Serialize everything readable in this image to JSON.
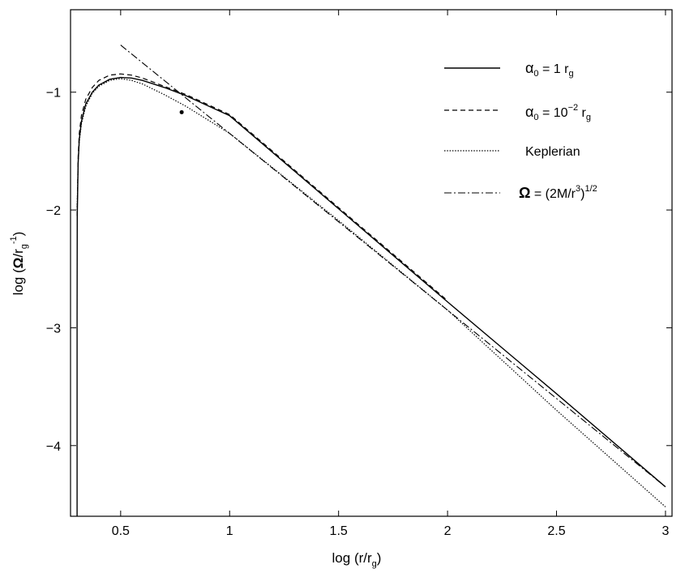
{
  "chart_data": {
    "type": "line",
    "xlabel": "log (r/r",
    "xlabel_sub": "g",
    "xlabel_close": ")",
    "ylabel_parts": {
      "pre": "log (",
      "omega": "Ω",
      "mid": "/r",
      "sub": "g",
      "sup": "-1",
      "post": ")"
    },
    "xlim": [
      0.27,
      3.03
    ],
    "ylim": [
      -4.6,
      -0.3
    ],
    "x_ticks": [
      0.5,
      1,
      1.5,
      2,
      2.5,
      3
    ],
    "x_tick_labels": [
      "0.5",
      "1",
      "1.5",
      "2",
      "2.5",
      "3"
    ],
    "y_ticks": [
      -1,
      -2,
      -3,
      -4
    ],
    "y_tick_labels": [
      "−1",
      "−2",
      "−3",
      "−4"
    ],
    "grid": false,
    "legend_position": "top-right",
    "legend": [
      {
        "style": "solid",
        "symbol": "α",
        "sub": "0",
        "rest": " = 1 r",
        "rest_sub": "g"
      },
      {
        "style": "dashed",
        "symbol": "α",
        "sub": "0",
        "rest": " = 10",
        "sup": "−2",
        "rest2": " r",
        "rest_sub": "g"
      },
      {
        "style": "dotted",
        "text": "Keplerian"
      },
      {
        "style": "dashdot",
        "omega": "Ω",
        "rest": " = (2M/r",
        "sup": "3",
        "rest2": ")",
        "sup2": "1/2"
      }
    ],
    "series": [
      {
        "style": "solid",
        "x": [
          0.3,
          0.3,
          0.301,
          0.305,
          0.31,
          0.32,
          0.34,
          0.37,
          0.4,
          0.45,
          0.5,
          0.55,
          0.6,
          0.7,
          0.8,
          1.0,
          1.5,
          2.0,
          2.5,
          3.0
        ],
        "y": [
          -4.6,
          -2.9,
          -2.05,
          -1.6,
          -1.4,
          -1.25,
          -1.1,
          -1.0,
          -0.94,
          -0.89,
          -0.875,
          -0.88,
          -0.9,
          -0.96,
          -1.03,
          -1.2,
          -1.99,
          -2.78,
          -3.56,
          -4.35
        ]
      },
      {
        "style": "dashed",
        "x": [
          0.3,
          0.305,
          0.31,
          0.32,
          0.34,
          0.37,
          0.4,
          0.45,
          0.5,
          0.55,
          0.6,
          0.7,
          0.8,
          1.0,
          1.5,
          2.0
        ],
        "y": [
          -2.05,
          -1.55,
          -1.35,
          -1.2,
          -1.06,
          -0.96,
          -0.9,
          -0.855,
          -0.845,
          -0.855,
          -0.88,
          -0.95,
          -1.02,
          -1.19,
          -1.98,
          -2.77
        ]
      },
      {
        "style": "dotted",
        "x": [
          0.3,
          0.305,
          0.31,
          0.32,
          0.34,
          0.37,
          0.4,
          0.45,
          0.5,
          0.55,
          0.6,
          0.7,
          0.8,
          1.0,
          1.5,
          2.0,
          2.5,
          3.0
        ],
        "y": [
          -2.0,
          -1.6,
          -1.42,
          -1.27,
          -1.12,
          -1.01,
          -0.95,
          -0.9,
          -0.885,
          -0.9,
          -0.93,
          -1.02,
          -1.12,
          -1.35,
          -2.09,
          -2.85,
          -3.7,
          -4.52
        ]
      },
      {
        "style": "dashdot",
        "x": [
          0.5,
          3.0
        ],
        "y": [
          -0.6,
          -4.35
        ]
      }
    ],
    "marker": {
      "x": 0.78,
      "y": -1.17
    }
  }
}
